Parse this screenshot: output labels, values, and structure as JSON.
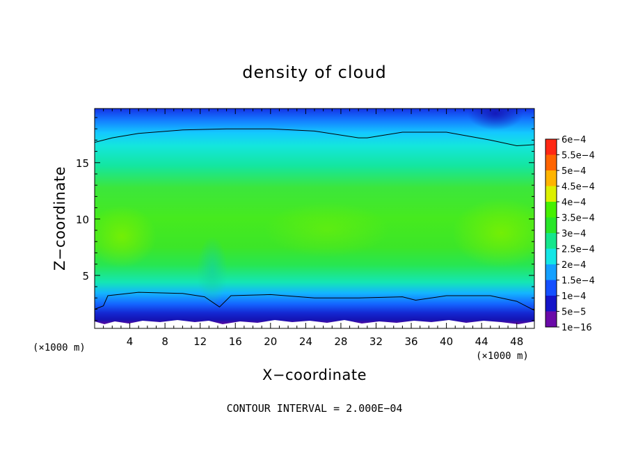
{
  "chart_data": {
    "type": "heatmap",
    "title": "density of cloud",
    "xlabel": "X−coordinate",
    "ylabel": "Z−coordinate",
    "x_unit": "(×1000 m)",
    "y_unit": "(×1000 m)",
    "xlim": [
      0,
      50
    ],
    "ylim": [
      0.3,
      19.8
    ],
    "x_ticks": [
      4,
      8,
      12,
      16,
      20,
      24,
      28,
      32,
      36,
      40,
      44,
      48
    ],
    "y_ticks": [
      5,
      10,
      15
    ],
    "note": "CONTOUR INTERVAL = 2.000E−04",
    "colorbar": {
      "levels": [
        "1e−16",
        "5e−5",
        "1e−4",
        "1.5e−4",
        "2e−4",
        "2.5e−4",
        "3e−4",
        "3.5e−4",
        "4e−4",
        "4.5e−4",
        "5e−4",
        "5.5e−4",
        "6e−4"
      ],
      "colors": [
        "#6a0aa8",
        "#1414c8",
        "#1450ff",
        "#14a0ff",
        "#14e6e6",
        "#14e68c",
        "#28e628",
        "#46f000",
        "#dcf000",
        "#ffb400",
        "#ff6400",
        "#ff2814",
        "#ff8c8c"
      ]
    },
    "contour_lines": [
      {
        "level": "2e−4",
        "x": [
          0,
          2,
          5,
          10,
          15,
          20,
          25,
          30,
          31,
          35,
          40,
          45,
          48,
          50
        ],
        "z": [
          16.8,
          17.2,
          17.6,
          17.9,
          18.0,
          18.0,
          17.8,
          17.2,
          17.2,
          17.7,
          17.7,
          17.0,
          16.5,
          16.6
        ]
      },
      {
        "level": "2e−4",
        "x": [
          0,
          1,
          1.5,
          5,
          10,
          12.5,
          14.2,
          15.5,
          20,
          25,
          30,
          35,
          36.5,
          40,
          45,
          48,
          50
        ],
        "z": [
          2.0,
          2.3,
          3.2,
          3.5,
          3.4,
          3.1,
          2.2,
          3.2,
          3.3,
          3.0,
          3.0,
          3.1,
          2.8,
          3.2,
          3.2,
          2.7,
          1.9
        ]
      }
    ]
  }
}
